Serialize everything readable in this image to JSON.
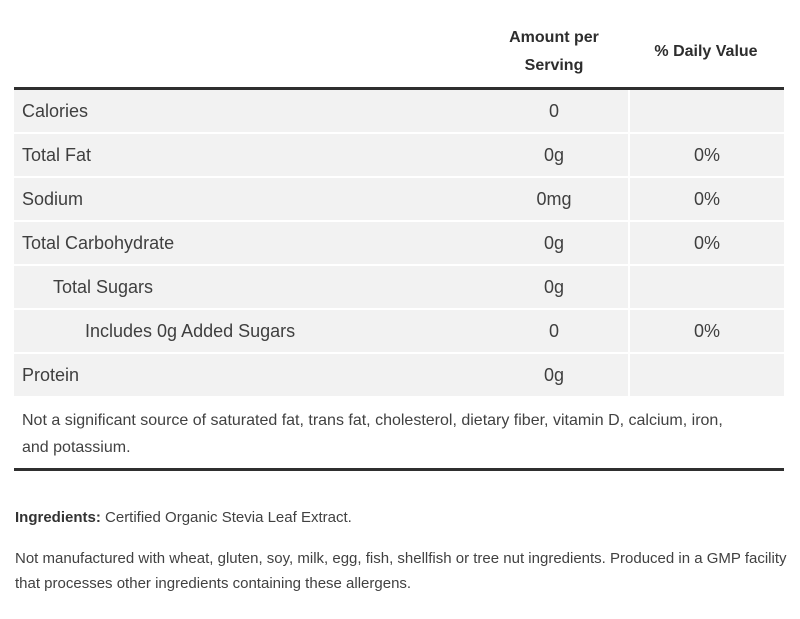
{
  "colors": {
    "rule_dark": "#2f2f2f",
    "row_background": "#f2f2f2",
    "separator": "#ffffff",
    "text": "#3f3f3f",
    "header_text": "#2d2d2d"
  },
  "table": {
    "header": {
      "amount_col": "Amount per Serving",
      "dv_col": "% Daily Value"
    },
    "rows": [
      {
        "label": "Calories",
        "amount": "0",
        "dv": "",
        "indent": 0
      },
      {
        "label": "Total Fat",
        "amount": "0g",
        "dv": "0%",
        "indent": 0
      },
      {
        "label": "Sodium",
        "amount": "0mg",
        "dv": "0%",
        "indent": 0
      },
      {
        "label": "Total Carbohydrate",
        "amount": "0g",
        "dv": "0%",
        "indent": 0
      },
      {
        "label": "Total Sugars",
        "amount": "0g",
        "dv": "",
        "indent": 1
      },
      {
        "label": "Includes 0g Added Sugars",
        "amount": "0",
        "dv": "0%",
        "indent": 2
      },
      {
        "label": "Protein",
        "amount": "0g",
        "dv": "",
        "indent": 0
      }
    ],
    "footnote": "Not a significant source of saturated fat, trans fat, cholesterol, dietary fiber, vitamin D, calcium, iron, and potassium."
  },
  "ingredients": {
    "label": "Ingredients:",
    "value": "Certified Organic Stevia Leaf Extract."
  },
  "allergen_note": "Not manufactured with wheat, gluten, soy, milk, egg, fish, shellfish or tree nut ingredients. Produced in a GMP facility that processes other ingredients containing these allergens."
}
